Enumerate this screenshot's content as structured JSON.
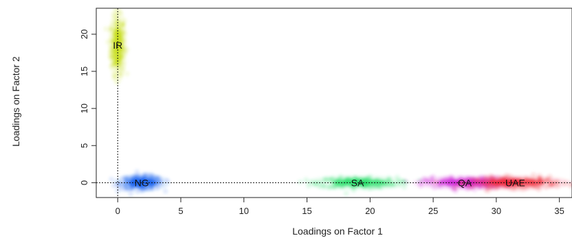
{
  "chart_data": {
    "type": "scatter",
    "xlabel": "Loadings on Factor 1",
    "ylabel": "Loadings on Factor 2",
    "xlim": [
      -1.7,
      36
    ],
    "ylim": [
      -2,
      23.5
    ],
    "x_ticks": [
      0,
      5,
      10,
      15,
      20,
      25,
      30,
      35
    ],
    "y_ticks": [
      0,
      5,
      10,
      15,
      20
    ],
    "reference_lines": [
      {
        "axis": "x",
        "value": 0,
        "style": "dotted"
      },
      {
        "axis": "y",
        "value": 0,
        "style": "dotted"
      }
    ],
    "grid": false,
    "series": [
      {
        "name": "IR",
        "color": "#c8e01e",
        "x": 0.0,
        "y": 18.5,
        "spread_x": 0.45,
        "spread_y": 3.2
      },
      {
        "name": "NG",
        "color": "#1a63f0",
        "x": 1.9,
        "y": 0.0,
        "spread_x": 1.4,
        "spread_y": 0.75
      },
      {
        "name": "SA",
        "color": "#27e06a",
        "x": 19.0,
        "y": 0.0,
        "spread_x": 2.6,
        "spread_y": 0.6
      },
      {
        "name": "QA",
        "color": "#cc1fd6",
        "x": 27.5,
        "y": 0.0,
        "spread_x": 2.6,
        "spread_y": 0.6
      },
      {
        "name": "UAE",
        "color": "#f01f33",
        "x": 31.5,
        "y": 0.0,
        "spread_x": 2.8,
        "spread_y": 0.6
      }
    ]
  }
}
